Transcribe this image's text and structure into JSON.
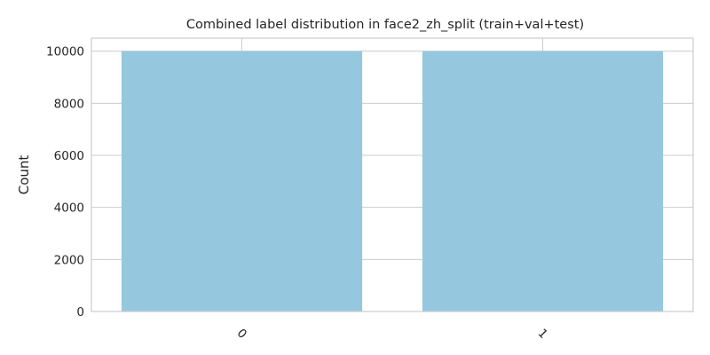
{
  "chart_data": {
    "type": "bar",
    "title": "Combined label distribution in face2_zh_split (train+val+test)",
    "xlabel": "",
    "ylabel": "Count",
    "categories": [
      "0",
      "1"
    ],
    "values": [
      10000,
      10000
    ],
    "ylim": [
      0,
      10500
    ],
    "yticks": [
      0,
      2000,
      4000,
      6000,
      8000,
      10000
    ],
    "bar_color": "#95c8df",
    "grid": true,
    "legend": "none"
  }
}
